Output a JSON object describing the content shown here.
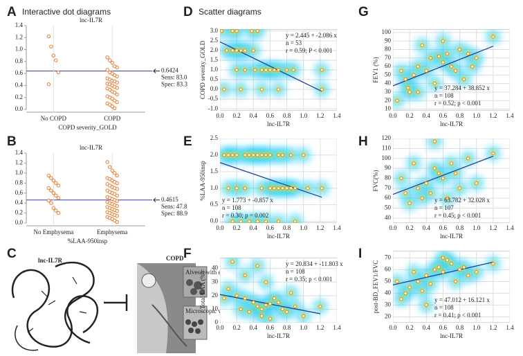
{
  "chart_data": [
    {
      "type": "dot",
      "panel": "A",
      "section_title": "Interactive dot diagrams",
      "title": "lnc-IL7R",
      "x_label": "COPD severity_GOLD",
      "categories": [
        "No COPD",
        "COPD"
      ],
      "values": [
        [
          1.22,
          1.05,
          0.9,
          0.82,
          0.62,
          0.42
        ],
        [
          0.87,
          0.82,
          0.78,
          0.72,
          0.7,
          0.66,
          0.62,
          0.6,
          0.57,
          0.55,
          0.52,
          0.5,
          0.48,
          0.47,
          0.45,
          0.43,
          0.42,
          0.4,
          0.38,
          0.36,
          0.35,
          0.33,
          0.3,
          0.28,
          0.25,
          0.22,
          0.2,
          0.18,
          0.15,
          0.12,
          0.1,
          0.08,
          0.05,
          0.02
        ]
      ],
      "color": "#e8782a",
      "cutoff": 0.6424,
      "sens": "Sens: 83.0",
      "spec": "Spec: 83.3",
      "cutoff_color": "#3a3ab0",
      "ylim": [
        0,
        1.4
      ],
      "yticks": [
        {
          "value": 0,
          "label": "0.0"
        },
        0.2,
        0.4,
        0.6,
        0.8,
        {
          "value": 1,
          "label": "1.0"
        },
        1.2,
        1.4
      ]
    },
    {
      "type": "dot",
      "panel": "B",
      "title": "lnc-IL7R",
      "x_label": "%LAA-950insp",
      "categories": [
        "No Emphysema",
        "Emphysema"
      ],
      "values": [
        [
          0.95,
          0.9,
          0.85,
          0.8,
          0.75,
          0.7,
          0.65,
          0.6,
          0.55,
          0.5,
          0.45,
          0.4,
          0.3,
          0.25,
          0.2
        ],
        [
          1.22,
          1.12,
          1.05,
          1.0,
          0.95,
          0.9,
          0.88,
          0.85,
          0.82,
          0.8,
          0.78,
          0.75,
          0.72,
          0.7,
          0.68,
          0.65,
          0.62,
          0.6,
          0.58,
          0.55,
          0.52,
          0.5,
          0.48,
          0.46,
          0.44,
          0.42,
          0.4,
          0.38,
          0.36,
          0.34,
          0.32,
          0.3,
          0.28,
          0.26,
          0.24,
          0.22,
          0.2,
          0.18,
          0.16,
          0.14,
          0.12,
          0.1,
          0.08,
          0.05,
          0.02
        ]
      ],
      "color": "#e8782a",
      "cutoff": 0.4615,
      "sens": "Sens: 47.8",
      "spec": "Spec: 88.9",
      "cutoff_color": "#3a3ab0",
      "ylim": [
        0,
        1.4
      ],
      "yticks": [
        {
          "value": 0,
          "label": "0.0"
        },
        0.2,
        0.4,
        0.6,
        0.8,
        {
          "value": 1,
          "label": "1.0"
        },
        1.2,
        1.4
      ]
    },
    {
      "type": "illustration",
      "panel": "C",
      "gene": "lnc-IL7R",
      "disease": "COPD",
      "inset_top": "Alveoli with emphysema",
      "inset_bottom": "Microscopic view of normal alveoli"
    },
    {
      "type": "scatter",
      "panel": "D",
      "section_title": "Scatter diagrams",
      "x_label": "lnc-IL7R",
      "y_label": "COPD severity_GOLD",
      "x": [
        0.02,
        0.15,
        0.2,
        0.38,
        0.45,
        0.08,
        0.15,
        0.2,
        0.25,
        0.3,
        0.4,
        0.2,
        0.3,
        0.42,
        0.5,
        0.55,
        0.6,
        0.65,
        0.7,
        0.8,
        0.88,
        1.22,
        0.05,
        0.25,
        0.5,
        0.7,
        1.22
      ],
      "y": [
        3,
        3,
        3,
        3,
        3,
        2,
        2,
        2,
        2,
        2,
        2,
        1,
        1,
        1,
        1,
        1,
        1,
        1,
        1,
        1,
        1,
        1,
        0,
        0,
        0,
        0,
        0
      ],
      "equation": "y = 2.445 + -2.086 x",
      "n": "n = 53",
      "r": "r = 0.59; P < 0.001",
      "fit": {
        "intercept": 2.445,
        "slope": -2.086
      },
      "color": "#e8782a",
      "fit_color": "#1f3fa0",
      "xlim": [
        0,
        1.4
      ],
      "xticks": [
        {
          "value": 0,
          "label": "0.0"
        },
        0.2,
        0.4,
        0.6,
        0.8,
        {
          "value": 1,
          "label": "1.0"
        },
        1.2,
        1.4
      ],
      "ylim": [
        -1.1,
        3.1
      ],
      "yticks": [
        {
          "value": -1,
          "label": "-1.0"
        },
        -0.5,
        {
          "value": 0,
          "label": "0.0"
        },
        0.5,
        {
          "value": 1,
          "label": "1.0"
        },
        1.5,
        {
          "value": 2,
          "label": "2.0"
        },
        2.5,
        {
          "value": 3,
          "label": "3.0"
        }
      ]
    },
    {
      "type": "scatter",
      "panel": "E",
      "x_label": "lnc-IL7R",
      "y_label": "%LAA-950insp",
      "x": [
        0.05,
        0.1,
        0.15,
        0.2,
        0.3,
        0.35,
        0.4,
        0.45,
        0.5,
        0.55,
        0.6,
        0.7,
        0.75,
        0.85,
        1.0,
        0.1,
        0.2,
        0.3,
        0.5,
        0.6,
        0.65,
        0.7,
        0.75,
        0.8,
        0.85,
        0.9,
        1.05,
        1.22,
        0.15,
        0.25,
        0.35,
        0.45,
        0.55,
        0.7,
        0.9
      ],
      "y": [
        2,
        2,
        2,
        2,
        2,
        2,
        2,
        2,
        2,
        2,
        2,
        2,
        2,
        2,
        2,
        1,
        1,
        1,
        1,
        1,
        1,
        1,
        1,
        1,
        1,
        1,
        1,
        1,
        0,
        0,
        0,
        0,
        0,
        0,
        0
      ],
      "equation": "y = 1.773 + -0.857 x",
      "n": "n = 108",
      "r": "r = 0.30; p = 0.002",
      "fit": {
        "intercept": 1.773,
        "slope": -0.857
      },
      "color": "#e8782a",
      "fit_color": "#1f3fa0",
      "xlim": [
        0,
        1.4
      ],
      "xticks": [
        {
          "value": 0,
          "label": "0.0"
        },
        0.2,
        0.4,
        0.6,
        0.8,
        {
          "value": 1,
          "label": "1.0"
        },
        1.2,
        1.4
      ],
      "ylim": [
        -0.05,
        2.5
      ],
      "yticks": [
        {
          "value": 0,
          "label": "0.0"
        },
        0.5,
        {
          "value": 1,
          "label": "1.0"
        },
        1.5,
        {
          "value": 2,
          "label": "2.0"
        },
        2.5
      ]
    },
    {
      "type": "scatter",
      "panel": "F",
      "x_label": "lnc-IL7R",
      "y_label": "Total LAA (%)",
      "x": [
        0.15,
        0.45,
        0.3,
        0.55,
        0.1,
        0.2,
        0.3,
        0.4,
        0.45,
        0.5,
        0.55,
        0.6,
        0.65,
        0.7,
        0.75,
        0.8,
        0.9,
        1.0,
        0.25,
        0.35,
        0.5,
        0.6,
        0.05,
        1.2,
        0.85
      ],
      "y": [
        45,
        42,
        35,
        30,
        25,
        20,
        18,
        15,
        12,
        10,
        13,
        14,
        18,
        15,
        10,
        8,
        12,
        5,
        10,
        8,
        5,
        3,
        18,
        12,
        22
      ],
      "equation": "y = 20.834 + -11.803 x",
      "n": "n = 108",
      "r": "r = 0.35; p < 0.001",
      "fit": {
        "intercept": 20.834,
        "slope": -11.803
      },
      "color": "#e8782a",
      "fit_color": "#1f3fa0",
      "xlim": [
        0,
        1.4
      ],
      "xticks": [
        {
          "value": 0,
          "label": "0.0"
        },
        0.2,
        0.4,
        0.6,
        0.8,
        {
          "value": 1,
          "label": "1.0"
        },
        1.2,
        1.4
      ],
      "ylim": [
        0,
        48
      ],
      "yticks": [
        0,
        10,
        20,
        30,
        40
      ]
    },
    {
      "type": "scatter",
      "panel": "G",
      "x_label": "lnc-IL7R",
      "y_label": "FEV1 (%)",
      "x": [
        0.18,
        0.2,
        0.15,
        0.25,
        0.3,
        0.4,
        0.45,
        0.55,
        0.6,
        0.65,
        0.7,
        0.8,
        0.9,
        1.0,
        1.2,
        0.5,
        0.35,
        0.75,
        0.85,
        0.1,
        0.6,
        0.95,
        0.3,
        0.05
      ],
      "y": [
        35,
        30,
        45,
        50,
        60,
        55,
        70,
        72,
        65,
        75,
        60,
        80,
        75,
        70,
        95,
        40,
        85,
        55,
        45,
        55,
        90,
        60,
        30,
        20
      ],
      "equation": "y = 37.284 + 38.852 x",
      "n": "n = 108",
      "r": "r = 0.52; p < 0.001",
      "fit": {
        "intercept": 37.284,
        "slope": 38.852
      },
      "color": "#e8782a",
      "fit_color": "#1f3fa0",
      "xlim": [
        0,
        1.4
      ],
      "xticks": [
        {
          "value": 0,
          "label": "0.0"
        },
        0.2,
        0.4,
        0.6,
        0.8,
        {
          "value": 1,
          "label": "1.0"
        },
        1.2,
        1.4
      ],
      "ylim": [
        8,
        104
      ],
      "yticks": [
        10,
        20,
        30,
        40,
        50,
        60,
        70,
        80,
        90,
        100
      ]
    },
    {
      "type": "scatter",
      "panel": "H",
      "x_label": "lnc-IL7R",
      "y_label": "FVC(%)",
      "x": [
        0.55,
        0.6,
        0.5,
        0.4,
        0.35,
        0.45,
        0.3,
        0.2,
        0.15,
        0.1,
        0.7,
        0.8,
        0.9,
        1.0,
        1.2,
        0.65,
        0.75,
        0.25,
        0.5
      ],
      "y": [
        85,
        80,
        90,
        75,
        60,
        65,
        70,
        55,
        65,
        80,
        95,
        70,
        100,
        75,
        105,
        60,
        85,
        95,
        117
      ],
      "equation": "y = 63.782 + 32.028 x",
      "n": "n = 107",
      "r": "r = 0.45; p < 0.001",
      "fit": {
        "intercept": 63.782,
        "slope": 32.028
      },
      "color": "#e8782a",
      "fit_color": "#1f3fa0",
      "xlim": [
        0,
        1.4
      ],
      "xticks": [
        {
          "value": 0,
          "label": "0.0"
        },
        0.2,
        0.4,
        0.6,
        0.8,
        {
          "value": 1,
          "label": "1.0"
        },
        1.2,
        1.4
      ],
      "ylim": [
        35,
        120
      ],
      "yticks": [
        40,
        50,
        60,
        70,
        80,
        90,
        100,
        110,
        120
      ]
    },
    {
      "type": "scatter",
      "panel": "I",
      "x_label": "lnc-IL7R",
      "y_label": "post-BD_FEV1/FVC",
      "x": [
        0.5,
        0.55,
        0.6,
        0.8,
        0.85,
        0.9,
        0.4,
        0.3,
        0.2,
        0.15,
        0.1,
        0.05,
        0.7,
        0.65,
        1.2,
        0.25,
        0.35,
        0.45,
        1.0,
        0.75,
        0.6,
        0.4
      ],
      "y": [
        60,
        62,
        58,
        60,
        62,
        55,
        55,
        50,
        45,
        40,
        35,
        50,
        65,
        68,
        65,
        58,
        42,
        48,
        58,
        50,
        70,
        30
      ],
      "equation": "y = 47.012 + 16.121 x",
      "n": "n = 108",
      "r": "r = 0.41; p < 0.001",
      "fit": {
        "intercept": 47.012,
        "slope": 16.121
      },
      "color": "#e8782a",
      "fit_color": "#1f3fa0",
      "xlim": [
        0,
        1.4
      ],
      "xticks": [
        {
          "value": 0,
          "label": "0.0"
        },
        0.2,
        0.4,
        0.6,
        0.8,
        {
          "value": 1,
          "label": "1.0"
        },
        1.2,
        1.4
      ],
      "ylim": [
        15,
        76
      ],
      "yticks": [
        20,
        30,
        40,
        50,
        60,
        70
      ]
    }
  ]
}
